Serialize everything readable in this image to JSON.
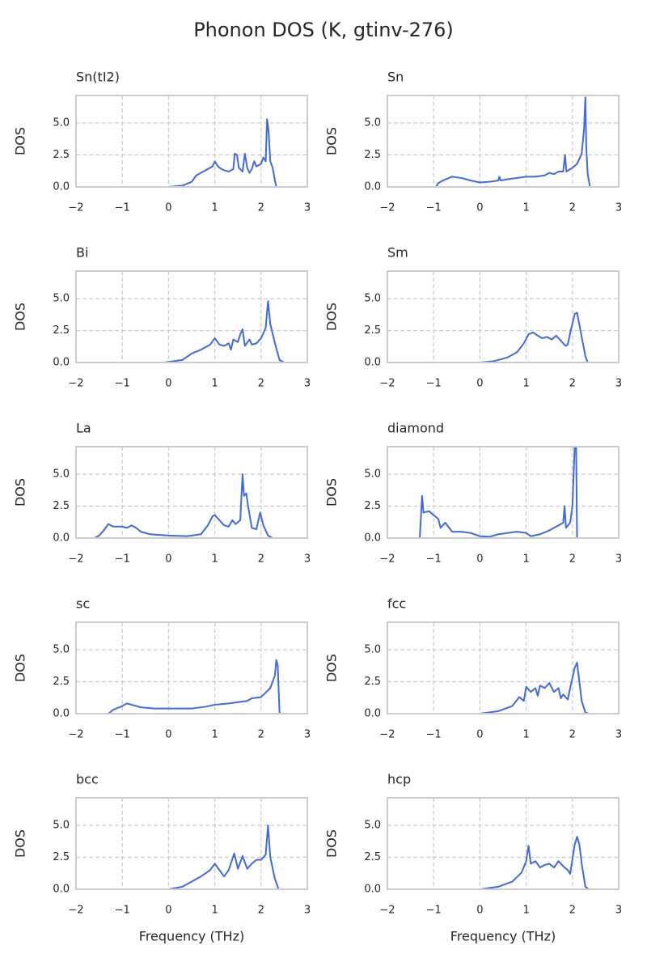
{
  "title": "Phonon DOS (K, gtinv-276)",
  "chart_data": [
    {
      "type": "line",
      "title": "Sn(tI2)",
      "ylabel": "DOS",
      "x": [
        -2,
        0,
        0.3,
        0.5,
        0.6,
        0.7,
        0.8,
        0.9,
        0.95,
        1.0,
        1.05,
        1.1,
        1.2,
        1.3,
        1.4,
        1.43,
        1.48,
        1.52,
        1.6,
        1.65,
        1.7,
        1.75,
        1.8,
        1.85,
        1.9,
        2.0,
        2.05,
        2.1,
        2.13,
        2.16,
        2.2,
        2.25,
        2.3,
        2.33,
        2.6
      ],
      "series": [
        {
          "color": "#4169e1",
          "values": [
            0,
            0,
            0.1,
            0.4,
            0.9,
            1.1,
            1.3,
            1.5,
            1.6,
            2.0,
            1.7,
            1.5,
            1.3,
            1.2,
            1.4,
            2.6,
            2.5,
            1.5,
            1.2,
            2.6,
            1.5,
            1.1,
            1.4,
            2.0,
            1.6,
            1.8,
            2.3,
            2.0,
            5.3,
            4.5,
            2.0,
            1.5,
            0.5,
            0,
            0
          ]
        }
      ],
      "xlim": [
        -2,
        3
      ],
      "ylim": [
        0,
        7.15
      ],
      "xticks": [
        {
          "value": -2,
          "label": "−2"
        },
        {
          "value": -1,
          "label": "−1"
        },
        0,
        1,
        2,
        3
      ],
      "yticks": [
        {
          "value": 0,
          "label": "0.0"
        },
        {
          "value": 2.5,
          "label": "2.5"
        },
        {
          "value": 5,
          "label": "5.0"
        }
      ],
      "grid": true
    },
    {
      "type": "line",
      "title": "Sn",
      "ylabel": "DOS",
      "x": [
        -0.95,
        -0.9,
        -0.8,
        -0.6,
        -0.4,
        -0.2,
        0,
        0.2,
        0.4,
        0.42,
        0.45,
        0.6,
        0.8,
        1.0,
        1.2,
        1.4,
        1.5,
        1.6,
        1.7,
        1.8,
        1.84,
        1.87,
        2.0,
        2.1,
        2.2,
        2.25,
        2.28,
        2.3,
        2.33,
        2.38,
        2.6
      ],
      "series": [
        {
          "color": "#4169e1",
          "values": [
            0,
            0.3,
            0.5,
            0.8,
            0.7,
            0.5,
            0.35,
            0.4,
            0.5,
            0.8,
            0.5,
            0.6,
            0.7,
            0.8,
            0.8,
            0.9,
            1.1,
            1.0,
            1.2,
            1.2,
            2.5,
            1.2,
            1.5,
            1.8,
            2.6,
            4.5,
            7.0,
            3.0,
            1.0,
            0,
            0
          ]
        }
      ],
      "xlim": [
        -2,
        3
      ],
      "ylim": [
        0,
        7.15
      ],
      "xticks": [
        {
          "value": -2,
          "label": "−2"
        },
        {
          "value": -1,
          "label": "−1"
        },
        0,
        1,
        2,
        3
      ],
      "yticks": [
        {
          "value": 0,
          "label": "0.0"
        },
        {
          "value": 2.5,
          "label": "2.5"
        },
        {
          "value": 5,
          "label": "5.0"
        }
      ],
      "grid": true
    },
    {
      "type": "line",
      "title": "Bi",
      "ylabel": "DOS",
      "x": [
        -2,
        -0.1,
        0.3,
        0.5,
        0.7,
        0.9,
        1.0,
        1.1,
        1.2,
        1.3,
        1.35,
        1.4,
        1.5,
        1.55,
        1.6,
        1.65,
        1.75,
        1.8,
        1.9,
        2.0,
        2.1,
        2.15,
        2.2,
        2.3,
        2.4,
        2.5,
        2.6
      ],
      "series": [
        {
          "color": "#4169e1",
          "values": [
            0,
            0,
            0.2,
            0.7,
            1.0,
            1.4,
            1.9,
            1.4,
            1.3,
            1.5,
            1.0,
            1.8,
            1.6,
            2.2,
            2.6,
            1.3,
            1.8,
            1.4,
            1.5,
            1.9,
            2.7,
            4.8,
            3.0,
            1.5,
            0.2,
            0,
            0
          ]
        }
      ],
      "xlim": [
        -2,
        3
      ],
      "ylim": [
        0,
        7.15
      ],
      "xticks": [
        {
          "value": -2,
          "label": "−2"
        },
        {
          "value": -1,
          "label": "−1"
        },
        0,
        1,
        2,
        3
      ],
      "yticks": [
        {
          "value": 0,
          "label": "0.0"
        },
        {
          "value": 2.5,
          "label": "2.5"
        },
        {
          "value": 5,
          "label": "5.0"
        }
      ],
      "grid": true
    },
    {
      "type": "line",
      "title": "Sm",
      "ylabel": "DOS",
      "x": [
        -2,
        0,
        0.3,
        0.6,
        0.8,
        0.95,
        1.05,
        1.15,
        1.25,
        1.35,
        1.45,
        1.55,
        1.65,
        1.75,
        1.85,
        1.9,
        1.95,
        2.05,
        2.1,
        2.2,
        2.28,
        2.33,
        2.6
      ],
      "series": [
        {
          "color": "#4169e1",
          "values": [
            0,
            0,
            0.1,
            0.4,
            0.8,
            1.5,
            2.2,
            2.35,
            2.1,
            1.9,
            2.0,
            1.8,
            2.1,
            1.7,
            1.3,
            1.4,
            2.3,
            3.8,
            3.9,
            2.0,
            0.5,
            0,
            0
          ]
        }
      ],
      "xlim": [
        -2,
        3
      ],
      "ylim": [
        0,
        7.15
      ],
      "xticks": [
        {
          "value": -2,
          "label": "−2"
        },
        {
          "value": -1,
          "label": "−1"
        },
        0,
        1,
        2,
        3
      ],
      "yticks": [
        {
          "value": 0,
          "label": "0.0"
        },
        {
          "value": 2.5,
          "label": "2.5"
        },
        {
          "value": 5,
          "label": "5.0"
        }
      ],
      "grid": true
    },
    {
      "type": "line",
      "title": "La",
      "ylabel": "DOS",
      "x": [
        -2,
        -1.6,
        -1.5,
        -1.4,
        -1.3,
        -1.2,
        -1.0,
        -0.9,
        -0.8,
        -0.7,
        -0.6,
        -0.4,
        0,
        0.4,
        0.7,
        0.85,
        0.95,
        1.0,
        1.1,
        1.2,
        1.3,
        1.38,
        1.45,
        1.55,
        1.6,
        1.63,
        1.68,
        1.72,
        1.8,
        1.9,
        1.98,
        2.05,
        2.15,
        2.25,
        2.6
      ],
      "series": [
        {
          "color": "#4169e1",
          "values": [
            0,
            0,
            0.2,
            0.6,
            1.1,
            0.9,
            0.9,
            0.8,
            1.0,
            0.8,
            0.5,
            0.3,
            0.2,
            0.15,
            0.3,
            1.0,
            1.7,
            1.8,
            1.4,
            1.0,
            0.9,
            1.4,
            1.1,
            1.4,
            5.0,
            3.3,
            3.5,
            2.5,
            0.8,
            0.7,
            2.0,
            1.0,
            0.2,
            0,
            0
          ]
        }
      ],
      "xlim": [
        -2,
        3
      ],
      "ylim": [
        0,
        7.15
      ],
      "xticks": [
        {
          "value": -2,
          "label": "−2"
        },
        {
          "value": -1,
          "label": "−1"
        },
        0,
        1,
        2,
        3
      ],
      "yticks": [
        {
          "value": 0,
          "label": "0.0"
        },
        {
          "value": 2.5,
          "label": "2.5"
        },
        {
          "value": 5,
          "label": "5.0"
        }
      ],
      "grid": true
    },
    {
      "type": "line",
      "title": "diamond",
      "ylabel": "DOS",
      "x": [
        -1.7,
        -1.3,
        -1.25,
        -1.22,
        -1.1,
        -1.0,
        -0.9,
        -0.85,
        -0.75,
        -0.6,
        -0.4,
        -0.2,
        0,
        0.2,
        0.4,
        0.6,
        0.8,
        1.0,
        1.1,
        1.3,
        1.5,
        1.7,
        1.8,
        1.83,
        1.86,
        1.95,
        2.0,
        2.05,
        2.08,
        2.1,
        2.5
      ],
      "series": [
        {
          "color": "#4169e1",
          "values": [
            0,
            0,
            3.3,
            2.0,
            2.1,
            1.8,
            1.5,
            0.8,
            1.2,
            0.5,
            0.5,
            0.4,
            0.15,
            0.1,
            0.3,
            0.4,
            0.5,
            0.4,
            0.15,
            0.3,
            0.6,
            1.0,
            1.2,
            2.5,
            0.8,
            1.2,
            2.5,
            7.2,
            7.2,
            0,
            0
          ]
        }
      ],
      "xlim": [
        -2,
        3
      ],
      "ylim": [
        0,
        7.15
      ],
      "xticks": [
        {
          "value": -2,
          "label": "−2"
        },
        {
          "value": -1,
          "label": "−1"
        },
        0,
        1,
        2,
        3
      ],
      "yticks": [
        {
          "value": 0,
          "label": "0.0"
        },
        {
          "value": 2.5,
          "label": "2.5"
        },
        {
          "value": 5,
          "label": "5.0"
        }
      ],
      "grid": true
    },
    {
      "type": "line",
      "title": "sc",
      "ylabel": "DOS",
      "x": [
        -1.3,
        -1.2,
        -1.0,
        -0.9,
        -0.8,
        -0.6,
        -0.3,
        0,
        0.5,
        0.8,
        1.0,
        1.3,
        1.5,
        1.7,
        1.8,
        2.0,
        2.2,
        2.3,
        2.33,
        2.36,
        2.4,
        2.6
      ],
      "series": [
        {
          "color": "#4169e1",
          "values": [
            0,
            0.3,
            0.6,
            0.8,
            0.7,
            0.5,
            0.4,
            0.4,
            0.4,
            0.55,
            0.7,
            0.8,
            0.9,
            1.0,
            1.2,
            1.3,
            2.0,
            3.0,
            4.2,
            3.8,
            0,
            0
          ]
        }
      ],
      "xlim": [
        -2,
        3
      ],
      "ylim": [
        0,
        7.15
      ],
      "xticks": [
        {
          "value": -2,
          "label": "−2"
        },
        {
          "value": -1,
          "label": "−1"
        },
        0,
        1,
        2,
        3
      ],
      "yticks": [
        {
          "value": 0,
          "label": "0.0"
        },
        {
          "value": 2.5,
          "label": "2.5"
        },
        {
          "value": 5,
          "label": "5.0"
        }
      ],
      "grid": true
    },
    {
      "type": "line",
      "title": "fcc",
      "ylabel": "DOS",
      "x": [
        -2,
        0,
        0.4,
        0.7,
        0.85,
        0.95,
        1.0,
        1.1,
        1.2,
        1.25,
        1.3,
        1.4,
        1.5,
        1.6,
        1.7,
        1.75,
        1.8,
        1.9,
        1.95,
        2.05,
        2.1,
        2.15,
        2.2,
        2.28,
        2.35,
        2.6
      ],
      "series": [
        {
          "color": "#4169e1",
          "values": [
            0,
            0,
            0.2,
            0.6,
            1.3,
            1.0,
            2.1,
            1.7,
            2.0,
            1.4,
            2.2,
            2.0,
            2.4,
            1.7,
            2.0,
            1.2,
            1.5,
            1.1,
            2.0,
            3.6,
            4.0,
            2.5,
            1.0,
            0.1,
            0,
            0
          ]
        }
      ],
      "xlim": [
        -2,
        3
      ],
      "ylim": [
        0,
        7.15
      ],
      "xticks": [
        {
          "value": -2,
          "label": "−2"
        },
        {
          "value": -1,
          "label": "−1"
        },
        0,
        1,
        2,
        3
      ],
      "yticks": [
        {
          "value": 0,
          "label": "0.0"
        },
        {
          "value": 2.5,
          "label": "2.5"
        },
        {
          "value": 5,
          "label": "5.0"
        }
      ],
      "grid": true
    },
    {
      "type": "line",
      "title": "bcc",
      "ylabel": "DOS",
      "xlabel": "Frequency (THz)",
      "x": [
        -2,
        0,
        0.3,
        0.5,
        0.7,
        0.9,
        1.0,
        1.1,
        1.2,
        1.3,
        1.42,
        1.5,
        1.6,
        1.7,
        1.8,
        1.9,
        2.0,
        2.1,
        2.15,
        2.2,
        2.3,
        2.38,
        2.6
      ],
      "series": [
        {
          "color": "#4169e1",
          "values": [
            0,
            0,
            0.2,
            0.6,
            1.0,
            1.5,
            2.0,
            1.5,
            1.0,
            1.5,
            2.8,
            1.6,
            2.6,
            1.6,
            2.0,
            2.3,
            2.3,
            2.7,
            5.0,
            2.5,
            0.8,
            0,
            0
          ]
        }
      ],
      "xlim": [
        -2,
        3
      ],
      "ylim": [
        0,
        7.15
      ],
      "xticks": [
        {
          "value": -2,
          "label": "−2"
        },
        {
          "value": -1,
          "label": "−1"
        },
        0,
        1,
        2,
        3
      ],
      "yticks": [
        {
          "value": 0,
          "label": "0.0"
        },
        {
          "value": 2.5,
          "label": "2.5"
        },
        {
          "value": 5,
          "label": "5.0"
        }
      ],
      "grid": true
    },
    {
      "type": "line",
      "title": "hcp",
      "ylabel": "DOS",
      "xlabel": "Frequency (THz)",
      "x": [
        -2,
        0,
        0.4,
        0.7,
        0.9,
        1.0,
        1.05,
        1.1,
        1.2,
        1.3,
        1.4,
        1.5,
        1.6,
        1.7,
        1.8,
        1.9,
        1.95,
        2.05,
        2.1,
        2.15,
        2.2,
        2.28,
        2.35,
        2.6
      ],
      "series": [
        {
          "color": "#4169e1",
          "values": [
            0,
            0,
            0.2,
            0.6,
            1.3,
            2.2,
            3.4,
            2.0,
            2.2,
            1.7,
            1.9,
            2.0,
            1.7,
            2.2,
            1.8,
            1.5,
            1.2,
            3.5,
            4.1,
            3.5,
            2.0,
            0.2,
            0,
            0
          ]
        }
      ],
      "xlim": [
        -2,
        3
      ],
      "ylim": [
        0,
        7.15
      ],
      "xticks": [
        {
          "value": -2,
          "label": "−2"
        },
        {
          "value": -1,
          "label": "−1"
        },
        0,
        1,
        2,
        3
      ],
      "yticks": [
        {
          "value": 0,
          "label": "0.0"
        },
        {
          "value": 2.5,
          "label": "2.5"
        },
        {
          "value": 5,
          "label": "5.0"
        }
      ],
      "grid": true
    }
  ]
}
